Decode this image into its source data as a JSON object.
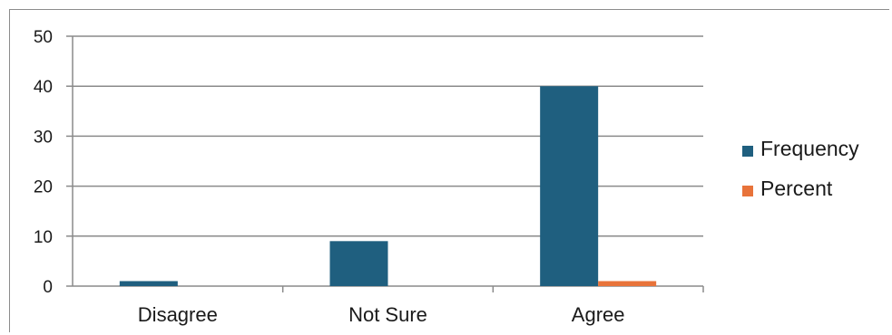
{
  "chart_data": {
    "type": "bar",
    "categories": [
      "Disagree",
      "Not Sure",
      "Agree"
    ],
    "series": [
      {
        "name": "Frequency",
        "values": [
          1,
          9,
          40
        ],
        "color": "#1f5f7f"
      },
      {
        "name": "Percent",
        "values": [
          0,
          0,
          1
        ],
        "color": "#e8733a"
      }
    ],
    "ylim": [
      0,
      50
    ],
    "yticks": [
      0,
      10,
      20,
      30,
      40,
      50
    ],
    "grid": true,
    "legend_position": "right"
  }
}
